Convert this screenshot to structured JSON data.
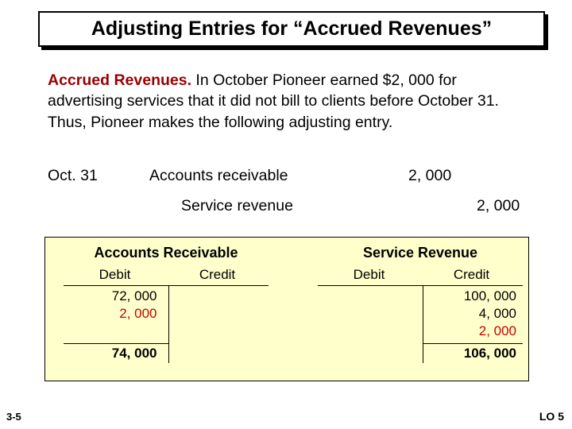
{
  "title": "Adjusting Entries for “Accrued Revenues”",
  "description": {
    "lead": "Accrued Revenues.",
    "rest": " In October Pioneer earned $2, 000 for advertising services that it did not bill to clients before October 31. Thus, Pioneer makes the following adjusting entry."
  },
  "journal_entry": {
    "date": "Oct. 31",
    "debit_account": "Accounts receivable",
    "debit_amount": "2, 000",
    "credit_account": "Service revenue",
    "credit_amount": "2, 000"
  },
  "t_accounts": {
    "left": {
      "title": "Accounts Receivable",
      "debit_header": "Debit",
      "credit_header": "Credit",
      "debit_values": [
        "72, 000",
        "2, 000"
      ],
      "credit_values": [],
      "red_index": 1,
      "debit_total": "74, 000",
      "credit_total": ""
    },
    "right": {
      "title": "Service Revenue",
      "debit_header": "Debit",
      "credit_header": "Credit",
      "debit_values": [],
      "credit_values": [
        "100, 000",
        "4, 000",
        "2, 000"
      ],
      "red_index": 2,
      "debit_total": "",
      "credit_total": "106, 000"
    }
  },
  "footer": {
    "page": "3-5",
    "lo": "LO 5"
  },
  "colors": {
    "bg": "#ffffff",
    "t_bg": "#ffffcc",
    "highlight_text": "#cc0000",
    "lead_text": "#990000"
  }
}
